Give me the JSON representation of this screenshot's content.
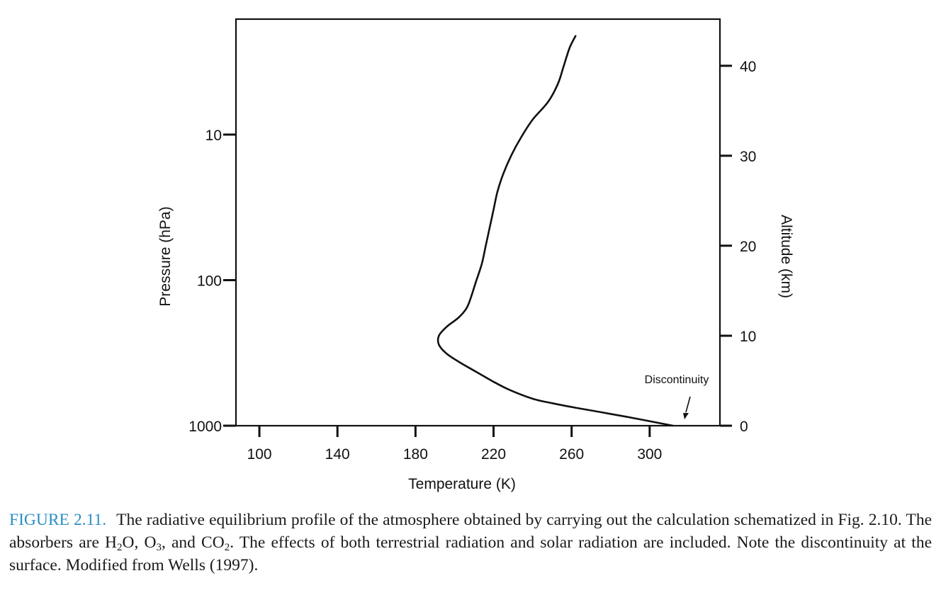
{
  "chart_data": {
    "type": "line",
    "xlabel": "Temperature (K)",
    "ylabel": "Pressure (hPa)",
    "y2label": "Altitude (km)",
    "x_ticks": [
      "100",
      "140",
      "180",
      "220",
      "260",
      "300"
    ],
    "y_ticks": [
      "10",
      "100",
      "1000"
    ],
    "y2_ticks": [
      "0",
      "10",
      "20",
      "30",
      "40"
    ],
    "xlim": [
      88,
      336
    ],
    "y_scale": "log",
    "y2lim": [
      0,
      44
    ],
    "grid": false,
    "series": [
      {
        "altitude_km": [
          0.0,
          0.5,
          1.0,
          1.5,
          2.0,
          2.5,
          3.0,
          4.0,
          5.0,
          6.0,
          7.0,
          8.0,
          9.0,
          10.0,
          11.0,
          12.0,
          13.0,
          14.0,
          16.0,
          18.0,
          20.0,
          22.0,
          24.0,
          26.0,
          28.0,
          30.0,
          32.0,
          34.0,
          36.0,
          38.0,
          40.0,
          42.0,
          43.3
        ],
        "temperature_K": [
          312,
          300,
          288,
          275,
          262,
          250,
          240,
          228,
          219,
          211,
          203,
          196,
          192,
          192,
          196,
          202,
          206,
          208,
          211,
          214,
          216,
          218,
          220,
          222,
          225,
          229,
          234,
          240,
          248,
          253,
          256,
          259,
          262
        ]
      }
    ],
    "annotations": [
      {
        "text": "Discontinuity",
        "points_to": {
          "temperature_K": 313,
          "altitude_km": 0
        }
      }
    ]
  },
  "caption": {
    "label": "FIGURE 2.11.",
    "text_1": "The radiative equilibrium profile of the atmosphere obtained by carrying out the calculation schematized in Fig. 2.10. The absorbers are H",
    "sub_1": "2",
    "text_2": "O, O",
    "sub_2": "3",
    "text_3": ", and CO",
    "sub_3": "2",
    "text_4": ". The effects of both terrestrial radiation and solar radiation are included. Note the discontinuity at the surface. Modified from Wells (1997)."
  }
}
